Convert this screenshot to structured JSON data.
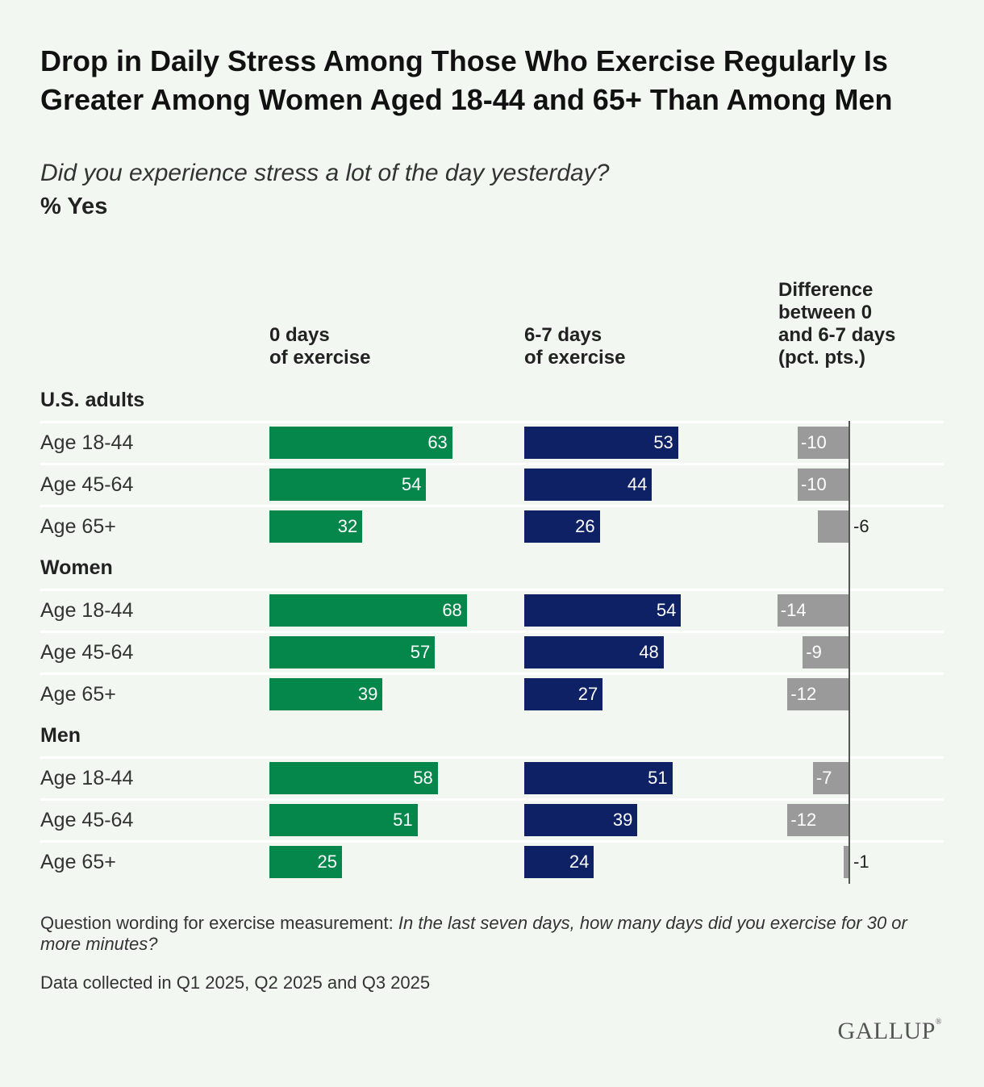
{
  "title": "Drop in Daily Stress Among Those Who Exercise Regularly Is Greater Among Women Aged 18-44 and 65+ Than Among Men",
  "subtitle": "Did you experience stress a lot of the day yesterday?",
  "measure": "% Yes",
  "columns": {
    "zero_days_line1": "0 days",
    "zero_days_line2": "of exercise",
    "six_seven_line1": "6-7 days",
    "six_seven_line2": "of exercise",
    "diff_line1": "Difference",
    "diff_line2": "between 0",
    "diff_line3": "and 6-7 days",
    "diff_line4": "(pct. pts.)"
  },
  "colors": {
    "zero_days": "#05874c",
    "six_seven_days": "#0d2164",
    "difference": "#9a9a9a"
  },
  "chart_data": {
    "type": "bar",
    "series": [
      {
        "name": "0 days of exercise",
        "color": "#05874c"
      },
      {
        "name": "6-7 days of exercise",
        "color": "#0d2164"
      },
      {
        "name": "Difference between 0 and 6-7 days (pct. pts.)",
        "color": "#9a9a9a"
      }
    ],
    "groups": [
      {
        "name": "U.S. adults",
        "rows": [
          {
            "label": "Age 18-44",
            "zero": 63,
            "six_seven": 53,
            "diff": -10
          },
          {
            "label": "Age 45-64",
            "zero": 54,
            "six_seven": 44,
            "diff": -10
          },
          {
            "label": "Age 65+",
            "zero": 32,
            "six_seven": 26,
            "diff": -6
          }
        ]
      },
      {
        "name": "Women",
        "rows": [
          {
            "label": "Age 18-44",
            "zero": 68,
            "six_seven": 54,
            "diff": -14
          },
          {
            "label": "Age 45-64",
            "zero": 57,
            "six_seven": 48,
            "diff": -9
          },
          {
            "label": "Age 65+",
            "zero": 39,
            "six_seven": 27,
            "diff": -12
          }
        ]
      },
      {
        "name": "Men",
        "rows": [
          {
            "label": "Age 18-44",
            "zero": 58,
            "six_seven": 51,
            "diff": -7
          },
          {
            "label": "Age 45-64",
            "zero": 51,
            "six_seven": 39,
            "diff": -12
          },
          {
            "label": "Age 65+",
            "zero": 25,
            "six_seven": 24,
            "diff": -1
          }
        ]
      }
    ]
  },
  "footnote": {
    "prefix": "Question wording for exercise measurement: ",
    "question": "In the last seven days, how many days did you exercise for 30 or more minutes?"
  },
  "data_note": "Data collected in Q1 2025, Q2 2025 and Q3 2025",
  "logo": "GALLUP"
}
